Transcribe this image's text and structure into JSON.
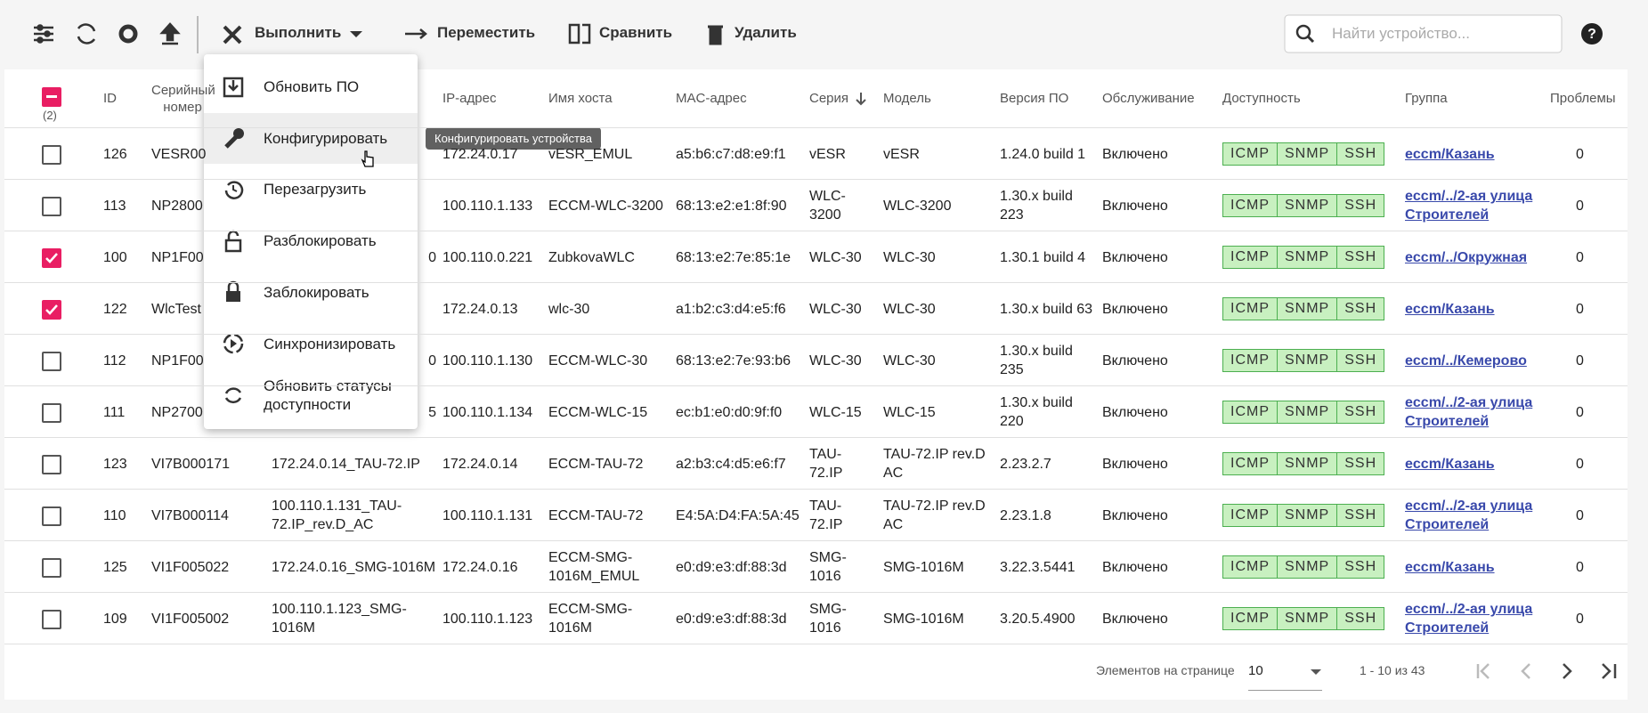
{
  "toolbar": {
    "actions": [
      "Выполнить",
      "Переместить",
      "Сравнить",
      "Удалить"
    ],
    "search_placeholder": "Найти устройство..."
  },
  "menu": {
    "items": [
      "Обновить ПО",
      "Конфигурировать",
      "Перезагрузить",
      "Разблокировать",
      "Заблокировать",
      "Синхронизировать",
      "Обновить статусы доступности"
    ],
    "tooltip": "Конфигурировать устройства"
  },
  "table": {
    "selected_count": "(2)",
    "columns": [
      "ID",
      "Серийный номер",
      "IP-адрес",
      "Имя хоста",
      "MAC-адрес",
      "Серия",
      "Модель",
      "Версия ПО",
      "Обслуживание",
      "Доступность",
      "Группа",
      "Проблемы"
    ],
    "availability": [
      "ICMP",
      "SNMP",
      "SSH"
    ],
    "rows": [
      {
        "checked": false,
        "id": 126,
        "serial": "VESR00",
        "name": null,
        "ip": "172.24.0.17",
        "host": "vESR_EMUL",
        "mac": "a5:b6:c7:d8:e9:f1",
        "series": "vESR",
        "model": "vESR",
        "version": "1.24.0 build 1",
        "service": "Включено",
        "group": "eccm/Казань",
        "problems": 0
      },
      {
        "checked": false,
        "id": 113,
        "serial": "NP2800",
        "name": null,
        "ip": "100.110.1.133",
        "host": "ECCM-WLC-3200",
        "mac": "68:13:e2:e1:8f:90",
        "series": "WLC-3200",
        "model": "WLC-3200",
        "version": "1.30.x build 223",
        "service": "Включено",
        "group": "eccm/../2-ая улица Строителей",
        "problems": 0
      },
      {
        "checked": true,
        "id": 100,
        "serial": "NP1F00",
        "name": "0",
        "ip": "100.110.0.221",
        "host": "ZubkovaWLC",
        "mac": "68:13:e2:7e:85:1e",
        "series": "WLC-30",
        "model": "WLC-30",
        "version": "1.30.1 build 4",
        "service": "Включено",
        "group": "eccm/../Окружная",
        "problems": 0
      },
      {
        "checked": true,
        "id": 122,
        "serial": "WlcTest",
        "name": null,
        "ip": "172.24.0.13",
        "host": "wlc-30",
        "mac": "a1:b2:c3:d4:e5:f6",
        "series": "WLC-30",
        "model": "WLC-30",
        "version": "1.30.x build 63",
        "service": "Включено",
        "group": "eccm/Казань",
        "problems": 0
      },
      {
        "checked": false,
        "id": 112,
        "serial": "NP1F00",
        "name": "0",
        "ip": "100.110.1.130",
        "host": "ECCM-WLC-30",
        "mac": "68:13:e2:7e:93:b6",
        "series": "WLC-30",
        "model": "WLC-30",
        "version": "1.30.x build 235",
        "service": "Включено",
        "group": "eccm/../Кемерово",
        "problems": 0
      },
      {
        "checked": false,
        "id": 111,
        "serial": "NP2700",
        "name": "5",
        "ip": "100.110.1.134",
        "host": "ECCM-WLC-15",
        "mac": "ec:b1:e0:d0:9f:f0",
        "series": "WLC-15",
        "model": "WLC-15",
        "version": "1.30.x build 220",
        "service": "Включено",
        "group": "eccm/../2-ая улица Строителей",
        "problems": 0
      },
      {
        "checked": false,
        "id": 123,
        "serial": "VI7B000171",
        "name": "172.24.0.14_TAU-72.IP",
        "ip": "172.24.0.14",
        "host": "ECCM-TAU-72",
        "mac": "a2:b3:c4:d5:e6:f7",
        "series": "TAU-72.IP",
        "model": "TAU-72.IP rev.D AC",
        "version": "2.23.2.7",
        "service": "Включено",
        "group": "eccm/Казань",
        "problems": 0
      },
      {
        "checked": false,
        "id": 110,
        "serial": "VI7B000114",
        "name": "100.110.1.131_TAU-72.IP_rev.D_AC",
        "ip": "100.110.1.131",
        "host": "ECCM-TAU-72",
        "mac": "E4:5A:D4:FA:5A:45",
        "series": "TAU-72.IP",
        "model": "TAU-72.IP rev.D AC",
        "version": "2.23.1.8",
        "service": "Включено",
        "group": "eccm/../2-ая улица Строителей",
        "problems": 0
      },
      {
        "checked": false,
        "id": 125,
        "serial": "VI1F005022",
        "name": "172.24.0.16_SMG-1016M",
        "ip": "172.24.0.16",
        "host": "ECCM-SMG-1016M_EMUL",
        "mac": "e0:d9:e3:df:88:3d",
        "series": "SMG-1016",
        "model": "SMG-1016M",
        "version": "3.22.3.5441",
        "service": "Включено",
        "group": "eccm/Казань",
        "problems": 0
      },
      {
        "checked": false,
        "id": 109,
        "serial": "VI1F005002",
        "name": "100.110.1.123_SMG-1016M",
        "ip": "100.110.1.123",
        "host": "ECCM-SMG-1016M",
        "mac": "e0:d9:e3:df:88:3d",
        "series": "SMG-1016",
        "model": "SMG-1016M",
        "version": "3.20.5.4900",
        "service": "Включено",
        "group": "eccm/../2-ая улица Строителей",
        "problems": 0
      }
    ]
  },
  "paginator": {
    "label": "Элементов на странице",
    "page_size": "10",
    "range": "1 - 10 из 43"
  }
}
